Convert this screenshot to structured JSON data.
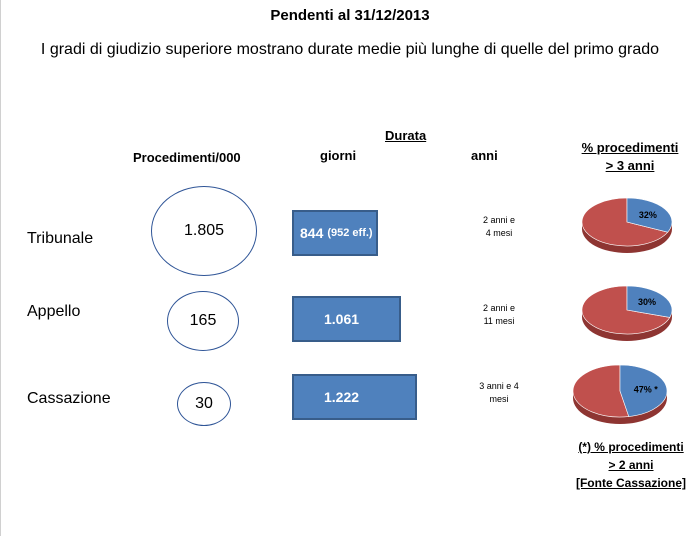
{
  "title": "Pendenti al 31/12/2013",
  "subtitle": "I gradi di giudizio superiore mostrano durate medie più lunghe di quelle del primo grado",
  "headers": {
    "procedimenti": "Procedimenti/000",
    "durata": "Durata",
    "giorni": "giorni",
    "anni": "anni",
    "pct_line1": "% procedimenti",
    "pct_line2": "> 3 anni"
  },
  "rows": [
    {
      "label": "Tribunale",
      "procedimenti": "1.805",
      "giorni": "844",
      "giorni_note": "(952 eff.)",
      "anni_line1": "2 anni e",
      "anni_line2": "4 mesi",
      "pct_label": "32%"
    },
    {
      "label": "Appello",
      "procedimenti": "165",
      "giorni": "1.061",
      "giorni_note": "",
      "anni_line1": "2 anni e",
      "anni_line2": "11 mesi",
      "pct_label": "30%"
    },
    {
      "label": "Cassazione",
      "procedimenti": "30",
      "giorni": "1.222",
      "giorni_note": "",
      "anni_line1": "3 anni e 4",
      "anni_line2": "mesi",
      "pct_label": "47% *"
    }
  ],
  "footnote": {
    "line1": "(*) % procedimenti",
    "line2": "> 2 anni",
    "line3": "[Fonte Cassazione]"
  },
  "colors": {
    "bar_fill": "#4f81bd",
    "bar_border": "#385d8a",
    "oval_border": "#2f5597",
    "pie_blue": "#4f81bd",
    "pie_red": "#c0504d"
  },
  "chart_data": [
    {
      "type": "bar",
      "categories": [
        "Tribunale",
        "Appello",
        "Cassazione"
      ],
      "values": [
        844,
        1061,
        1222
      ],
      "ylabel": "giorni"
    },
    {
      "type": "pie",
      "categories": [
        "Tribunale",
        "Appello",
        "Cassazione"
      ],
      "values": [
        32,
        30,
        47
      ]
    }
  ]
}
